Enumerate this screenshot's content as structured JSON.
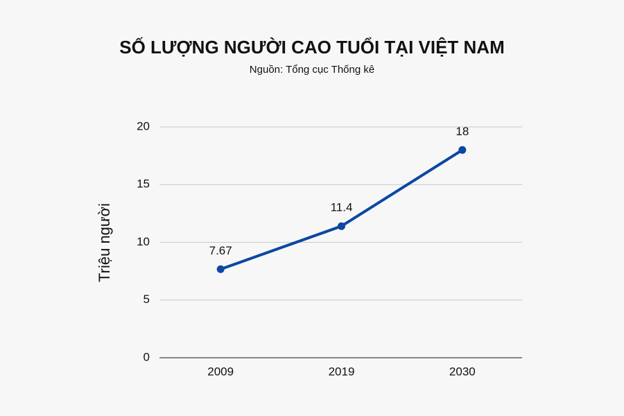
{
  "chart_data": {
    "type": "line",
    "title": "SỐ LƯỢNG NGƯỜI CAO TUỔI TẠI VIỆT NAM",
    "subtitle": "Nguồn: Tổng cục Thống kê",
    "y_label": "Triệu người",
    "categories": [
      "2009",
      "2019",
      "2030"
    ],
    "values": [
      7.67,
      11.4,
      18
    ],
    "color": "#0b47a3",
    "ylim": [
      0,
      20
    ],
    "yticks": [
      0,
      5,
      10,
      15,
      20
    ],
    "grid": true
  }
}
